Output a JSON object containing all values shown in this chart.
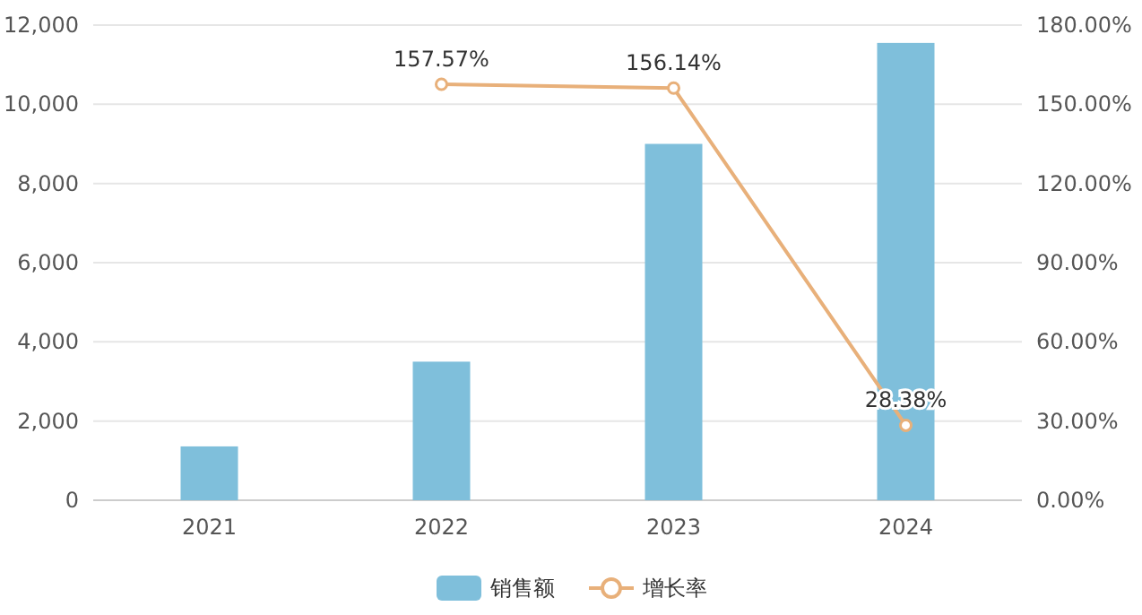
{
  "chart_data": {
    "type": "bar",
    "categories": [
      "2021",
      "2022",
      "2023",
      "2024"
    ],
    "series": [
      {
        "name": "销售额",
        "color": "#7fbfdb",
        "values": [
          1360,
          3500,
          9000,
          11550
        ]
      },
      {
        "name": "增长率",
        "type": "line",
        "axis": "y2",
        "color": "#e8b07a",
        "marker": "circle",
        "values": [
          null,
          157.57,
          156.14,
          28.38
        ],
        "value_labels": [
          null,
          "157.57%",
          "156.14%",
          "28.38%"
        ]
      }
    ],
    "ylim": [
      0,
      12000
    ],
    "yticks": [
      0,
      {
        "value": 2000,
        "label": "2,000"
      },
      {
        "value": 4000,
        "label": "4,000"
      },
      {
        "value": 6000,
        "label": "6,000"
      },
      {
        "value": 8000,
        "label": "8,000"
      },
      {
        "value": 10000,
        "label": "10,000"
      },
      {
        "value": 12000,
        "label": "12,000"
      }
    ],
    "y2lim": [
      0,
      180
    ],
    "y2ticks": [
      {
        "value": 0,
        "label": "0.00%"
      },
      {
        "value": 30,
        "label": "30.00%"
      },
      {
        "value": 60,
        "label": "60.00%"
      },
      {
        "value": 90,
        "label": "90.00%"
      },
      {
        "value": 120,
        "label": "120.00%"
      },
      {
        "value": 150,
        "label": "150.00%"
      },
      {
        "value": 180,
        "label": "180.00%"
      }
    ],
    "grid": "y",
    "legend": "bottom"
  }
}
